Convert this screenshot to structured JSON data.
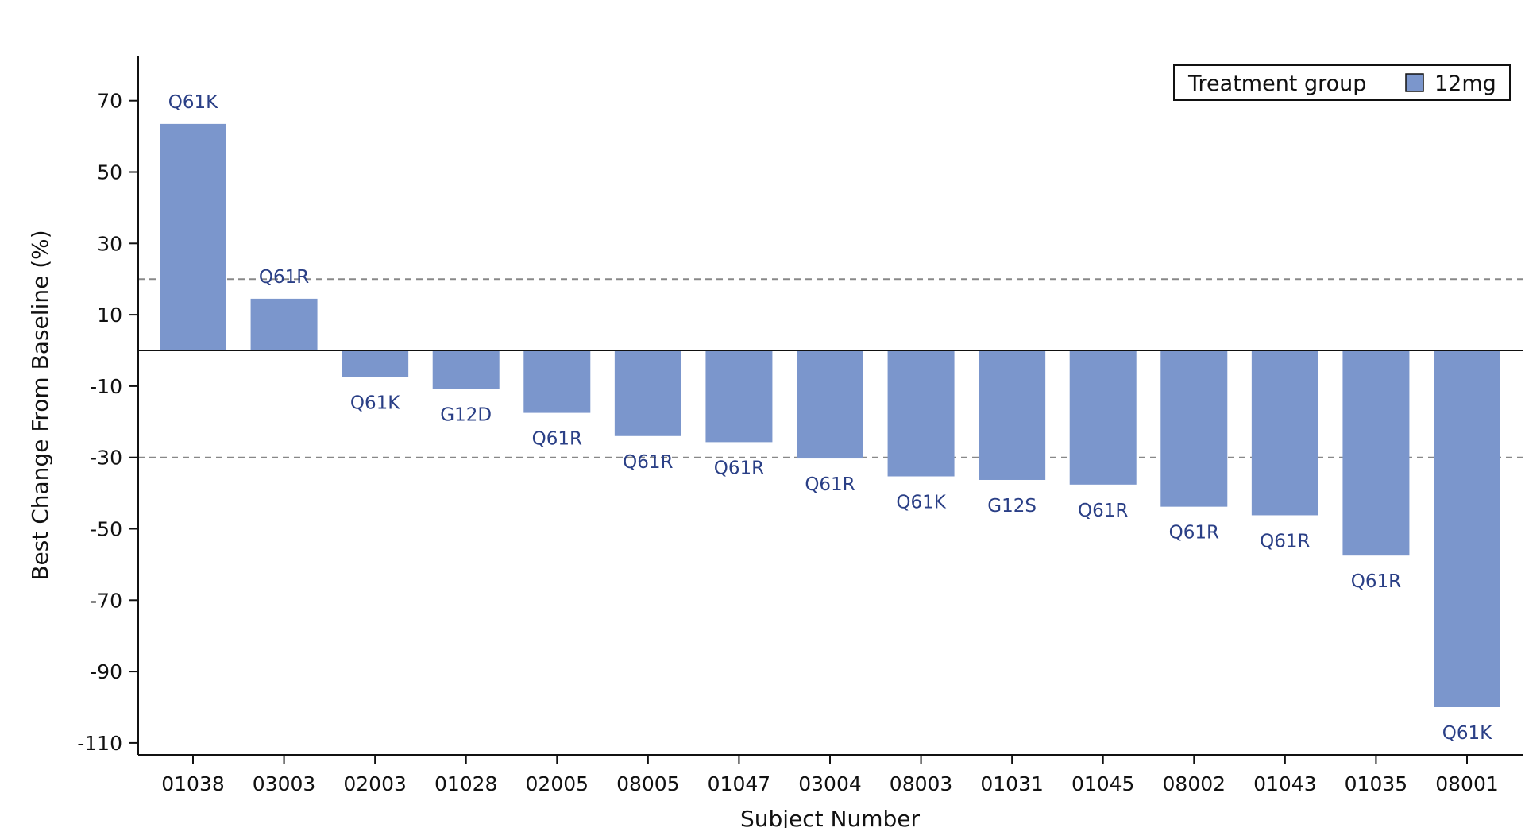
{
  "chart_data": {
    "type": "bar",
    "title": "",
    "xlabel": "Subject Number",
    "ylabel": "Best Change From Baseline (%)",
    "ylim": [
      -113,
      85
    ],
    "yticks": [
      70,
      50,
      30,
      10,
      -10,
      -30,
      -50,
      -70,
      -90,
      -110
    ],
    "reference_lines": [
      20,
      -30
    ],
    "zero_line": 0,
    "categories": [
      "01038",
      "03003",
      "02003",
      "01028",
      "02005",
      "08005",
      "01047",
      "03004",
      "08003",
      "01031",
      "01045",
      "08002",
      "01043",
      "01035",
      "08001"
    ],
    "values": [
      63.5,
      14.5,
      -7.5,
      -10.8,
      -17.5,
      -24,
      -25.7,
      -30.3,
      -35.3,
      -36.3,
      -37.6,
      -43.8,
      -46.2,
      -57.5,
      -100
    ],
    "mutations": [
      "Q61K",
      "Q61R",
      "Q61K",
      "G12D",
      "Q61R",
      "Q61R",
      "Q61R",
      "Q61R",
      "Q61K",
      "G12S",
      "Q61R",
      "Q61R",
      "Q61R",
      "Q61R",
      "Q61K"
    ],
    "legend": {
      "title": "Treatment group",
      "entries": [
        {
          "name": "12mg",
          "color": "#7b96cc"
        }
      ],
      "position": "top-right"
    },
    "colors": {
      "bar": "#7b96cc",
      "bar_label": "#2a3f86",
      "reference_line": "#888888",
      "axis": "#111111"
    }
  }
}
